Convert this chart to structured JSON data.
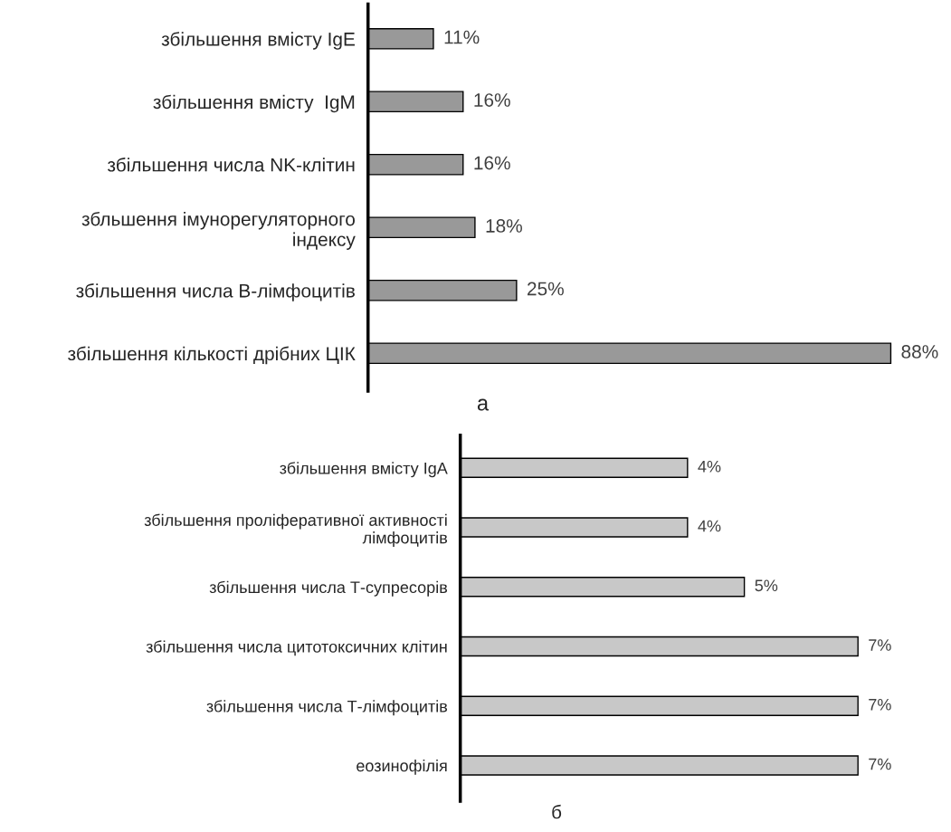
{
  "chart_data": [
    {
      "type": "bar",
      "orientation": "horizontal",
      "xlabel": "а",
      "tick_labels": "y",
      "categories": [
        "збільшення вмісту IgE",
        "збільшення вмісту  IgM",
        "збільшення числа NK-клітин",
        "збльшення імунорегуляторного\nіндексу",
        "збільшення числа B-лімфоцитів",
        "збільшення кількості дрібних ЦІК"
      ],
      "values": [
        11,
        16,
        16,
        18,
        25,
        88
      ],
      "value_labels": [
        "11%",
        "16%",
        "16%",
        "18%",
        "25%",
        "88%"
      ],
      "color": "#999999"
    },
    {
      "type": "bar",
      "orientation": "horizontal",
      "xlabel": "б",
      "tick_labels": "y",
      "categories": [
        "збільшення вмісту IgA",
        "збільшення проліферативної активності\nлімфоцитів",
        "збільшення числа Т-супресорів",
        "збільшення числа цитотоксичних клітин",
        "збільшення числа Т-лімфоцитів",
        "еозинофілія"
      ],
      "values": [
        4,
        4,
        5,
        7,
        7,
        7
      ],
      "value_labels": [
        "4%",
        "4%",
        "5%",
        "7%",
        "7%",
        "7%"
      ],
      "color": "#c8c8c8"
    }
  ]
}
